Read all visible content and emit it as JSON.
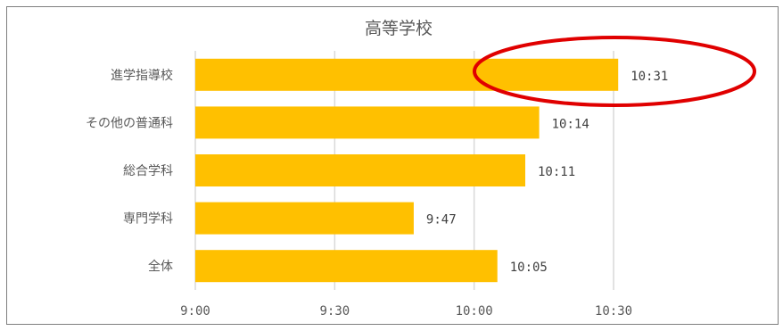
{
  "chart_data": {
    "type": "bar",
    "orientation": "horizontal",
    "title": "高等学校",
    "categories": [
      "進学指導校",
      "その他の普通科",
      "総合学科",
      "専門学科",
      "全体"
    ],
    "values": [
      631,
      614,
      611,
      587,
      605
    ],
    "value_unit": "minutes after 0:00",
    "data_labels": [
      "10:31",
      "10:14",
      "10:11",
      "9:47",
      "10:05"
    ],
    "xlim": [
      540,
      630
    ],
    "x_ticks": [
      540,
      570,
      600,
      630
    ],
    "x_tick_labels": [
      "9:00",
      "9:30",
      "10:00",
      "10:30"
    ],
    "grid": "vertical",
    "bar_color": "#FFC000",
    "annotation": {
      "shape": "ellipse",
      "color": "#E00000",
      "highlights": "進学指導校"
    }
  }
}
